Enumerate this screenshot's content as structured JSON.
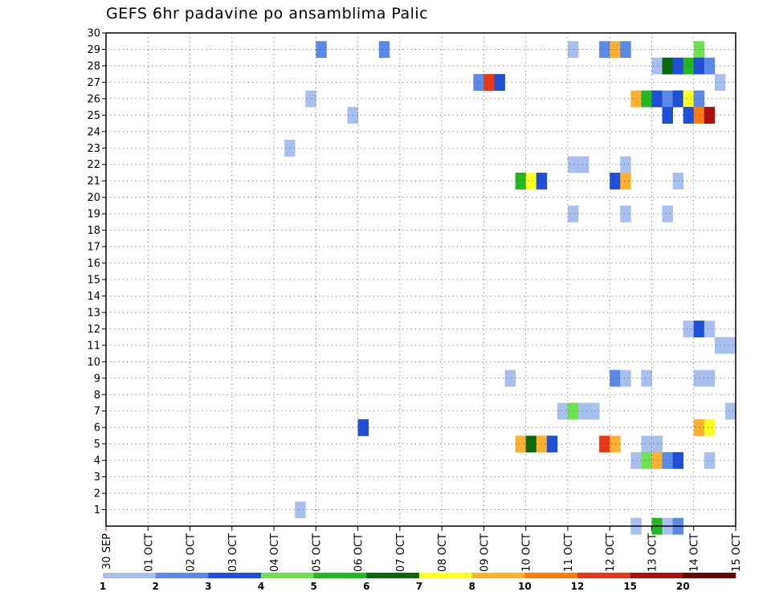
{
  "chart_data": {
    "type": "heatmap",
    "title": "GEFS 6hr padavine po ansamblima Palic",
    "xlabel": "",
    "ylabel": "",
    "x_ticks": [
      "30 SEP",
      "01 OCT",
      "02 OCT",
      "03 OCT",
      "04 OCT",
      "05 OCT",
      "06 OCT",
      "07 OCT",
      "08 OCT",
      "09 OCT",
      "10 OCT",
      "11 OCT",
      "12 OCT",
      "13 OCT",
      "14 OCT",
      "15 OCT"
    ],
    "y_ticks": [
      1,
      2,
      3,
      4,
      5,
      6,
      7,
      8,
      9,
      10,
      11,
      12,
      13,
      14,
      15,
      16,
      17,
      18,
      19,
      20,
      21,
      22,
      23,
      24,
      25,
      26,
      27,
      28,
      29,
      30
    ],
    "xlim": [
      0,
      15
    ],
    "ylim": [
      0,
      30
    ],
    "x_unit": "days since 30 SEP 00Z",
    "grid": true,
    "colorbar": {
      "labels": [
        "1",
        "2",
        "3",
        "4",
        "5",
        "6",
        "7",
        "8",
        "10",
        "12",
        "15",
        "20"
      ],
      "colors": [
        "#a8c0f0",
        "#5a8ae8",
        "#1f4fd6",
        "#6ee34f",
        "#22b822",
        "#0a6a0a",
        "#ffff22",
        "#ffb030",
        "#ff7a10",
        "#e83818",
        "#a81010",
        "#6a0505"
      ]
    },
    "cells_note": "each cell: day offset (start of 6-hour slot) in days from 30 SEP, ensemble member, colour class index into colorbar",
    "cells": [
      [
        5.0,
        29,
        1
      ],
      [
        6.5,
        29,
        1
      ],
      [
        11.0,
        29,
        0
      ],
      [
        11.75,
        29,
        1
      ],
      [
        12.0,
        29,
        7
      ],
      [
        12.25,
        29,
        1
      ],
      [
        14.0,
        29,
        3
      ],
      [
        13.0,
        28,
        0
      ],
      [
        13.25,
        28,
        5
      ],
      [
        13.5,
        28,
        2
      ],
      [
        13.75,
        28,
        4
      ],
      [
        14.0,
        28,
        2
      ],
      [
        14.25,
        28,
        1
      ],
      [
        8.75,
        27,
        1
      ],
      [
        9.0,
        27,
        9
      ],
      [
        9.25,
        27,
        2
      ],
      [
        14.5,
        27,
        0
      ],
      [
        4.75,
        26,
        0
      ],
      [
        12.5,
        26,
        7
      ],
      [
        12.75,
        26,
        4
      ],
      [
        13.0,
        26,
        2
      ],
      [
        13.25,
        26,
        1
      ],
      [
        13.5,
        26,
        2
      ],
      [
        13.75,
        26,
        6
      ],
      [
        14.0,
        26,
        1
      ],
      [
        5.75,
        25,
        0
      ],
      [
        13.25,
        25,
        2
      ],
      [
        13.75,
        25,
        2
      ],
      [
        14.0,
        25,
        8
      ],
      [
        14.25,
        25,
        10
      ],
      [
        4.25,
        23,
        0
      ],
      [
        11.0,
        22,
        0
      ],
      [
        11.25,
        22,
        0
      ],
      [
        12.25,
        22,
        0
      ],
      [
        9.75,
        21,
        4
      ],
      [
        10.0,
        21,
        6
      ],
      [
        10.25,
        21,
        2
      ],
      [
        12.0,
        21,
        2
      ],
      [
        12.25,
        21,
        7
      ],
      [
        13.5,
        21,
        0
      ],
      [
        11.0,
        19,
        0
      ],
      [
        12.25,
        19,
        0
      ],
      [
        13.25,
        19,
        0
      ],
      [
        13.75,
        12,
        0
      ],
      [
        14.0,
        12,
        2
      ],
      [
        14.25,
        12,
        0
      ],
      [
        14.5,
        11,
        0
      ],
      [
        14.75,
        11,
        0
      ],
      [
        9.5,
        9,
        0
      ],
      [
        12.0,
        9,
        1
      ],
      [
        12.25,
        9,
        0
      ],
      [
        12.75,
        9,
        0
      ],
      [
        14.0,
        9,
        0
      ],
      [
        14.25,
        9,
        0
      ],
      [
        10.75,
        7,
        0
      ],
      [
        11.0,
        7,
        3
      ],
      [
        11.25,
        7,
        0
      ],
      [
        11.5,
        7,
        0
      ],
      [
        14.75,
        7,
        0
      ],
      [
        6.0,
        6,
        2
      ],
      [
        14.0,
        6,
        7
      ],
      [
        14.25,
        6,
        6
      ],
      [
        9.75,
        5,
        7
      ],
      [
        10.0,
        5,
        5
      ],
      [
        10.25,
        5,
        7
      ],
      [
        10.5,
        5,
        2
      ],
      [
        11.75,
        5,
        9
      ],
      [
        12.0,
        5,
        7
      ],
      [
        12.75,
        5,
        0
      ],
      [
        13.0,
        5,
        0
      ],
      [
        12.5,
        4,
        0
      ],
      [
        12.75,
        4,
        3
      ],
      [
        13.0,
        4,
        7
      ],
      [
        13.25,
        4,
        1
      ],
      [
        13.5,
        4,
        2
      ],
      [
        14.25,
        4,
        0
      ],
      [
        4.5,
        1,
        0
      ],
      [
        12.5,
        0,
        0
      ],
      [
        13.0,
        0,
        4
      ],
      [
        13.25,
        0,
        0
      ],
      [
        13.5,
        0,
        1
      ]
    ]
  }
}
